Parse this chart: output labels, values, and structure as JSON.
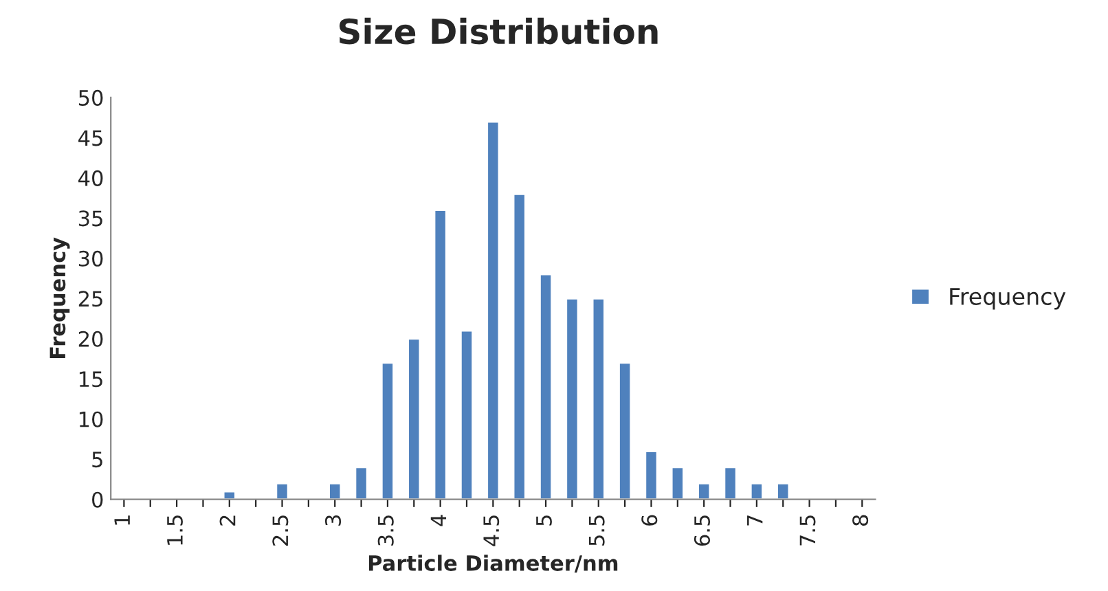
{
  "chart_data": {
    "type": "bar",
    "title": "Size Distribution",
    "xlabel": "Particle Diameter/nm",
    "ylabel": "Frequency",
    "categories": [
      "1",
      null,
      "1.5",
      null,
      "2",
      null,
      "2.5",
      null,
      "3",
      null,
      "3.5",
      null,
      "4",
      null,
      "4.5",
      null,
      "5",
      null,
      "5.5",
      null,
      "6",
      null,
      "6.5",
      null,
      "7",
      null,
      "7.5",
      null,
      "8"
    ],
    "series": [
      {
        "name": "Frequency",
        "color": "#4f81bd",
        "values": [
          0,
          0,
          0,
          0,
          1,
          0,
          2,
          0,
          2,
          4,
          17,
          20,
          36,
          21,
          47,
          38,
          28,
          25,
          25,
          17,
          6,
          4,
          2,
          4,
          2,
          2,
          0,
          0,
          0
        ]
      }
    ],
    "ylim": [
      0,
      50
    ],
    "yticks": [
      0,
      5,
      10,
      15,
      20,
      25,
      30,
      35,
      40,
      45,
      50
    ],
    "grid": false,
    "legend": "right"
  }
}
